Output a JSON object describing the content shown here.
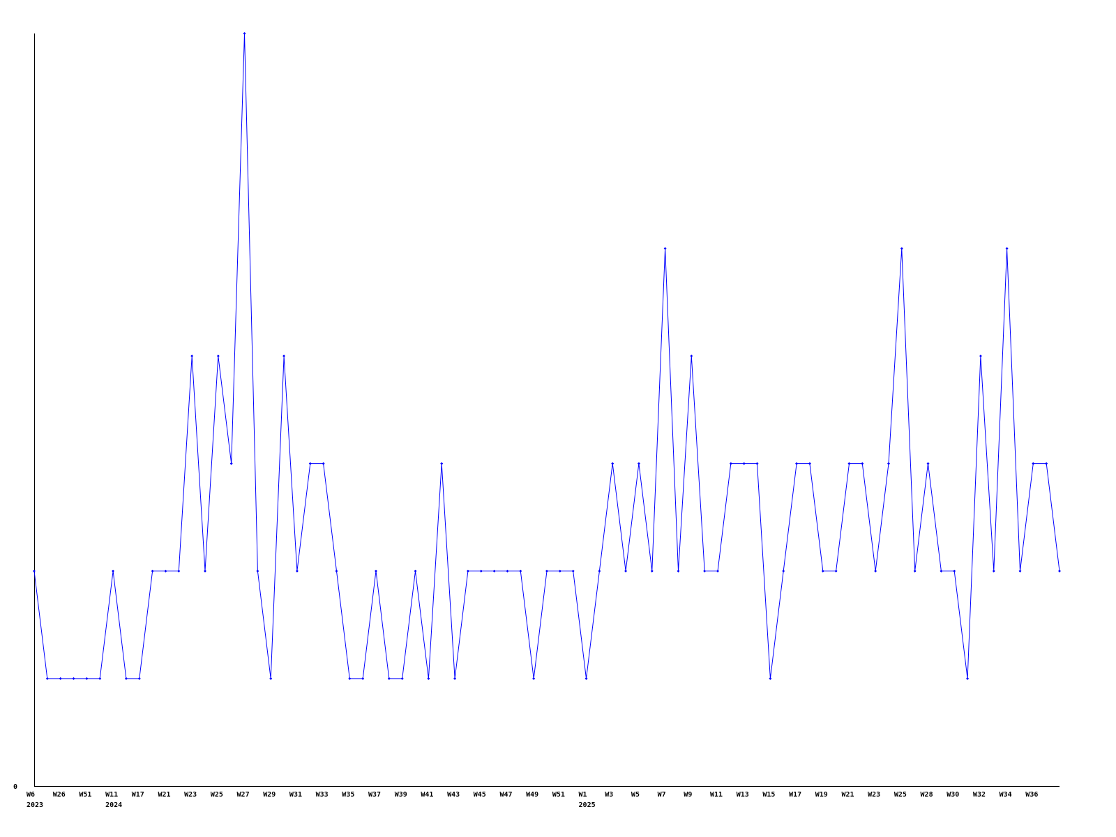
{
  "chart_data": {
    "type": "line",
    "title": "",
    "xlabel": "",
    "ylabel": "",
    "ylim": [
      0,
      7
    ],
    "y_tick_labels": [
      "0"
    ],
    "grid": false,
    "legend": "none",
    "line_color": "#0000ff",
    "categories": [
      "W6",
      "",
      "W26",
      "",
      "W51",
      "",
      "W11",
      "",
      "W17",
      "",
      "W21",
      "",
      "W23",
      "",
      "W25",
      "",
      "W27",
      "",
      "W29",
      "",
      "W31",
      "",
      "W33",
      "",
      "W35",
      "",
      "W37",
      "",
      "W39",
      "",
      "W41",
      "",
      "W43",
      "",
      "W45",
      "",
      "W47",
      "",
      "W49",
      "",
      "W51",
      "",
      "W1",
      "",
      "W3",
      "",
      "W5",
      "",
      "W7",
      "",
      "W9",
      "",
      "W11",
      "",
      "W13",
      "",
      "W15",
      "",
      "W17",
      "",
      "W19",
      "",
      "W21",
      "",
      "W23",
      "",
      "W25",
      "",
      "W28",
      "",
      "W30",
      "",
      "W32",
      "",
      "W34",
      "",
      "W36",
      "",
      ""
    ],
    "year_labels": [
      {
        "category_index": 0,
        "label": "2023"
      },
      {
        "category_index": 6,
        "label": "2024"
      },
      {
        "category_index": 42,
        "label": "2025"
      }
    ],
    "values": [
      2,
      1,
      1,
      1,
      1,
      1,
      2,
      1,
      1,
      2,
      2,
      2,
      4,
      2,
      4,
      3,
      7,
      2,
      1,
      4,
      2,
      3,
      3,
      2,
      1,
      1,
      2,
      1,
      1,
      2,
      1,
      3,
      1,
      2,
      2,
      2,
      2,
      2,
      1,
      2,
      2,
      2,
      1,
      2,
      3,
      2,
      3,
      2,
      5,
      2,
      4,
      2,
      2,
      3,
      3,
      3,
      1,
      2,
      3,
      3,
      2,
      2,
      3,
      3,
      2,
      3,
      5,
      2,
      3,
      2,
      2,
      1,
      4,
      2,
      5,
      2,
      3,
      3,
      2
    ]
  }
}
